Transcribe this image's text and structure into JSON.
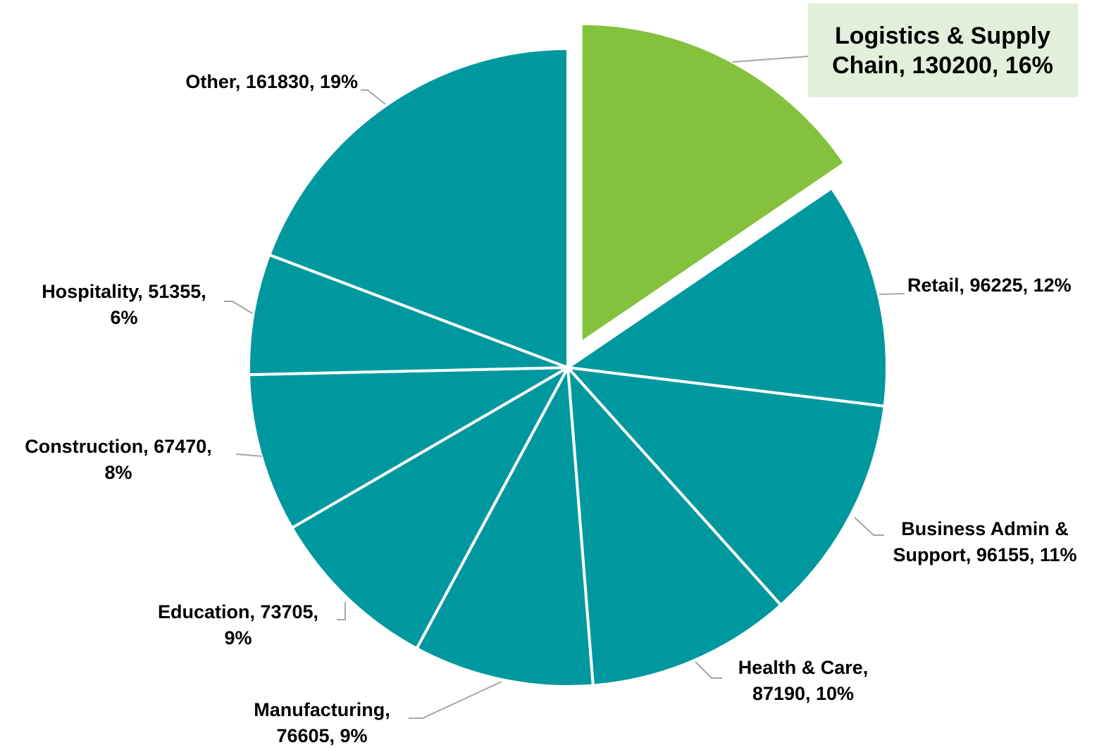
{
  "chart_data": {
    "type": "pie",
    "values": [
      130200,
      96225,
      96155,
      87190,
      76605,
      73705,
      67470,
      51355,
      161830
    ],
    "value_labels": [
      "Logistics & Supply Chain, 130200, 16%",
      "Retail, 96225, 12%",
      "Business Admin & Support, 96155, 11%",
      "Health & Care, 87190, 10%",
      "Manufacturing, 76605, 9%",
      "Education, 73705, 9%",
      "Construction, 67470, 8%",
      "Hospitality, 51355, 6%",
      "Other, 161830, 19%"
    ],
    "colors": [
      "#84c13d",
      "#00989f",
      "#00989f",
      "#00989f",
      "#00989f",
      "#00989f",
      "#00989f",
      "#00989f",
      "#00989f"
    ],
    "label_highlight_color": "#e2efda",
    "leader_line_color": "#a6a6a6"
  }
}
